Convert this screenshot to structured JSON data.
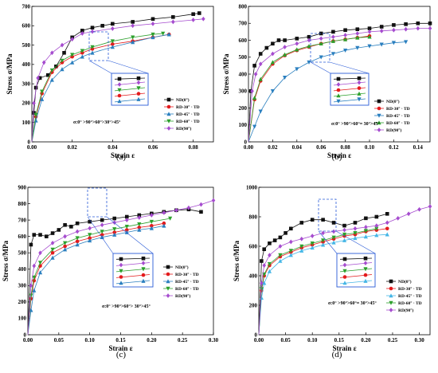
{
  "colors": {
    "ND(0°)": "#111111",
    "RD-30°": "#e31a1c",
    "RD-45°": "#2a7fbf",
    "RD-60°": "#2ca02c",
    "RD(90°)": "#a64ccf",
    "RD-45° (d)": "#45b6e6"
  },
  "chart_data": [
    {
      "panel": "(a)",
      "type": "line",
      "xlabel": "Strain ε",
      "ylabel": "Stress σ/MPa",
      "xlim": [
        0,
        0.09
      ],
      "ylim": [
        0,
        700
      ],
      "xticks": [
        "0.00",
        "0.02",
        "0.04",
        "0.06",
        "0.08"
      ],
      "yticks": [
        "0",
        "100",
        "200",
        "300",
        "400",
        "500",
        "600",
        "700"
      ],
      "annotation": "σ:0° >90°>60°>30°>45°",
      "legend_position": "right",
      "series": [
        {
          "name": "ND(0°)",
          "marker": "square",
          "x": [
            0,
            0.001,
            0.002,
            0.004,
            0.008,
            0.012,
            0.016,
            0.02,
            0.025,
            0.03,
            0.035,
            0.04,
            0.05,
            0.06,
            0.07,
            0.08,
            0.083
          ],
          "y": [
            0,
            150,
            280,
            330,
            345,
            390,
            460,
            540,
            575,
            590,
            600,
            610,
            620,
            635,
            645,
            660,
            665
          ]
        },
        {
          "name": "RD-30° · TD",
          "marker": "circle",
          "x": [
            0,
            0.002,
            0.005,
            0.01,
            0.015,
            0.02,
            0.025,
            0.03,
            0.04,
            0.05,
            0.06,
            0.068
          ],
          "y": [
            0,
            130,
            250,
            360,
            410,
            440,
            460,
            480,
            505,
            520,
            540,
            555
          ]
        },
        {
          "name": "RD-45° · TD",
          "marker": "triangle-up",
          "x": [
            0,
            0.002,
            0.005,
            0.01,
            0.015,
            0.02,
            0.025,
            0.03,
            0.04,
            0.05,
            0.06,
            0.068
          ],
          "y": [
            0,
            110,
            220,
            320,
            375,
            410,
            440,
            460,
            490,
            515,
            540,
            555
          ]
        },
        {
          "name": "RD-60° · TD",
          "marker": "triangle-down",
          "x": [
            0,
            0.002,
            0.005,
            0.01,
            0.015,
            0.02,
            0.025,
            0.03,
            0.04,
            0.05,
            0.06,
            0.065
          ],
          "y": [
            0,
            140,
            260,
            370,
            420,
            450,
            470,
            490,
            520,
            540,
            555,
            560
          ]
        },
        {
          "name": "RD(90°)",
          "marker": "diamond",
          "x": [
            0,
            0.001,
            0.003,
            0.006,
            0.01,
            0.015,
            0.02,
            0.025,
            0.03,
            0.04,
            0.05,
            0.06,
            0.07,
            0.08,
            0.085
          ],
          "y": [
            0,
            200,
            330,
            410,
            460,
            500,
            530,
            560,
            570,
            585,
            600,
            610,
            620,
            630,
            635
          ]
        }
      ]
    },
    {
      "panel": "(b)",
      "type": "line",
      "xlabel": "Strain ε",
      "ylabel": "Stress σ/MPa",
      "xlim": [
        0,
        0.15
      ],
      "ylim": [
        0,
        800
      ],
      "xticks": [
        "0.00",
        "0.02",
        "0.04",
        "0.06",
        "0.08",
        "0.10",
        "0.12",
        "0.14"
      ],
      "yticks": [
        "0",
        "100",
        "200",
        "300",
        "400",
        "500",
        "600",
        "700",
        "800"
      ],
      "annotation": "σ:0° >90°>60°≈ 30°>45°",
      "legend_position": "right",
      "series": [
        {
          "name": "ND(0°)",
          "marker": "square",
          "x": [
            0,
            0.002,
            0.005,
            0.01,
            0.015,
            0.02,
            0.025,
            0.03,
            0.04,
            0.05,
            0.06,
            0.07,
            0.08,
            0.09,
            0.1,
            0.11,
            0.12,
            0.13,
            0.14,
            0.15
          ],
          "y": [
            0,
            300,
            450,
            520,
            555,
            580,
            600,
            600,
            610,
            620,
            640,
            650,
            660,
            665,
            670,
            680,
            690,
            695,
            700,
            700
          ]
        },
        {
          "name": "RD-30° · TD",
          "marker": "circle",
          "x": [
            0,
            0.005,
            0.01,
            0.02,
            0.03,
            0.04,
            0.05,
            0.06,
            0.07,
            0.08,
            0.09,
            0.1
          ],
          "y": [
            0,
            250,
            360,
            460,
            510,
            540,
            560,
            580,
            595,
            605,
            615,
            625
          ]
        },
        {
          "name": "RD-45° · TD",
          "marker": "triangle-down",
          "x": [
            0,
            0.005,
            0.01,
            0.02,
            0.03,
            0.04,
            0.05,
            0.06,
            0.07,
            0.08,
            0.09,
            0.1,
            0.11,
            0.12,
            0.13
          ],
          "y": [
            0,
            90,
            180,
            300,
            380,
            430,
            470,
            500,
            520,
            540,
            555,
            565,
            575,
            585,
            590
          ]
        },
        {
          "name": "RD-60° · TD",
          "marker": "triangle-up",
          "x": [
            0,
            0.005,
            0.01,
            0.02,
            0.03,
            0.04,
            0.05,
            0.06,
            0.07,
            0.08,
            0.09,
            0.1
          ],
          "y": [
            0,
            260,
            370,
            470,
            515,
            545,
            565,
            580,
            595,
            605,
            615,
            620
          ]
        },
        {
          "name": "RD(90°)",
          "marker": "diamond",
          "x": [
            0,
            0.003,
            0.006,
            0.01,
            0.02,
            0.03,
            0.04,
            0.05,
            0.06,
            0.07,
            0.08,
            0.09,
            0.1,
            0.11,
            0.12,
            0.13,
            0.14,
            0.15
          ],
          "y": [
            0,
            300,
            400,
            460,
            520,
            560,
            580,
            600,
            610,
            620,
            630,
            640,
            650,
            655,
            660,
            665,
            670,
            670
          ]
        }
      ]
    },
    {
      "panel": "(c)",
      "type": "line",
      "xlabel": "Strain ε",
      "ylabel": "Stress σ/MPa",
      "xlim": [
        0,
        0.3
      ],
      "ylim": [
        0,
        900
      ],
      "xticks": [
        "0.00",
        "0.05",
        "0.10",
        "0.15",
        "0.20",
        "0.25",
        "0.30"
      ],
      "yticks": [
        "0",
        "100",
        "200",
        "300",
        "400",
        "500",
        "600",
        "700",
        "800",
        "900"
      ],
      "annotation": "σ:0° >90°>60°> 30°>45°",
      "legend_position": "right",
      "series": [
        {
          "name": "ND(0°)",
          "marker": "square",
          "x": [
            0,
            0.005,
            0.01,
            0.02,
            0.03,
            0.04,
            0.05,
            0.06,
            0.07,
            0.08,
            0.1,
            0.12,
            0.14,
            0.16,
            0.18,
            0.2,
            0.22,
            0.24,
            0.26,
            0.28
          ],
          "y": [
            0,
            550,
            610,
            610,
            600,
            620,
            640,
            670,
            660,
            680,
            690,
            700,
            710,
            720,
            730,
            740,
            750,
            760,
            765,
            750
          ]
        },
        {
          "name": "RD-30° · TD",
          "marker": "circle",
          "x": [
            0,
            0.005,
            0.01,
            0.02,
            0.04,
            0.06,
            0.08,
            0.1,
            0.12,
            0.14,
            0.16,
            0.18,
            0.2,
            0.22
          ],
          "y": [
            0,
            220,
            330,
            420,
            500,
            540,
            570,
            590,
            610,
            625,
            640,
            655,
            665,
            680
          ]
        },
        {
          "name": "RD-45° · TD",
          "marker": "triangle-up",
          "x": [
            0,
            0.005,
            0.01,
            0.02,
            0.04,
            0.06,
            0.08,
            0.1,
            0.12,
            0.14,
            0.16,
            0.18,
            0.2,
            0.22
          ],
          "y": [
            0,
            150,
            270,
            380,
            470,
            520,
            550,
            575,
            595,
            610,
            625,
            640,
            650,
            665
          ]
        },
        {
          "name": "RD-60° · TD",
          "marker": "triangle-down",
          "x": [
            0,
            0.005,
            0.01,
            0.02,
            0.04,
            0.06,
            0.08,
            0.1,
            0.12,
            0.14,
            0.16,
            0.18,
            0.2,
            0.23
          ],
          "y": [
            0,
            240,
            350,
            440,
            520,
            560,
            590,
            610,
            630,
            645,
            660,
            675,
            690,
            710
          ]
        },
        {
          "name": "RD(90°)",
          "marker": "diamond",
          "x": [
            0,
            0.005,
            0.01,
            0.02,
            0.04,
            0.06,
            0.08,
            0.1,
            0.12,
            0.14,
            0.16,
            0.18,
            0.2,
            0.22,
            0.24,
            0.26,
            0.28,
            0.3
          ],
          "y": [
            0,
            300,
            420,
            500,
            560,
            600,
            630,
            650,
            670,
            685,
            700,
            715,
            730,
            745,
            760,
            775,
            795,
            820
          ]
        }
      ]
    },
    {
      "panel": "(d)",
      "type": "line",
      "xlabel": "Strain ε",
      "ylabel": "Stress σ/MPa",
      "xlim": [
        0,
        0.32
      ],
      "ylim": [
        0,
        1000
      ],
      "xticks": [
        "0.00",
        "0.05",
        "0.10",
        "0.15",
        "0.20",
        "0.25",
        "0.30"
      ],
      "yticks": [
        "0",
        "200",
        "400",
        "600",
        "800",
        "1000"
      ],
      "annotation": "σ:0° >90°>60°≈ 30°>45°",
      "legend_position": "right",
      "series": [
        {
          "name": "ND(0°)",
          "marker": "square",
          "x": [
            0,
            0.005,
            0.01,
            0.02,
            0.03,
            0.04,
            0.05,
            0.06,
            0.08,
            0.1,
            0.12,
            0.14,
            0.16,
            0.18,
            0.2,
            0.22,
            0.24
          ],
          "y": [
            0,
            500,
            580,
            620,
            640,
            660,
            690,
            720,
            760,
            780,
            780,
            760,
            740,
            760,
            790,
            800,
            820
          ]
        },
        {
          "name": "RD-30° · TD",
          "marker": "circle",
          "x": [
            0,
            0.005,
            0.01,
            0.02,
            0.04,
            0.06,
            0.08,
            0.1,
            0.12,
            0.14,
            0.16,
            0.18,
            0.2,
            0.22,
            0.24
          ],
          "y": [
            0,
            300,
            400,
            470,
            530,
            560,
            590,
            610,
            630,
            650,
            670,
            680,
            700,
            710,
            720
          ]
        },
        {
          "name": "RD-45° · TD",
          "marker": "triangle-up",
          "x": [
            0,
            0.005,
            0.01,
            0.02,
            0.04,
            0.06,
            0.08,
            0.1,
            0.12,
            0.14,
            0.16,
            0.18,
            0.2,
            0.22,
            0.24
          ],
          "y": [
            0,
            250,
            350,
            430,
            500,
            540,
            570,
            590,
            610,
            625,
            640,
            655,
            665,
            675,
            680
          ]
        },
        {
          "name": "RD-60° · TD",
          "marker": "triangle-down",
          "x": [
            0,
            0.005,
            0.01,
            0.02,
            0.04,
            0.06,
            0.08,
            0.1,
            0.12,
            0.14,
            0.16,
            0.18,
            0.2,
            0.22
          ],
          "y": [
            0,
            310,
            410,
            480,
            540,
            570,
            600,
            620,
            640,
            660,
            680,
            690,
            705,
            720
          ]
        },
        {
          "name": "RD(90°)",
          "marker": "diamond",
          "x": [
            0,
            0.005,
            0.01,
            0.02,
            0.04,
            0.06,
            0.08,
            0.1,
            0.12,
            0.14,
            0.16,
            0.18,
            0.2,
            0.22,
            0.24,
            0.26,
            0.28,
            0.3,
            0.32
          ],
          "y": [
            0,
            350,
            470,
            540,
            600,
            630,
            650,
            670,
            690,
            700,
            710,
            720,
            730,
            740,
            760,
            790,
            820,
            850,
            870
          ]
        }
      ]
    }
  ]
}
